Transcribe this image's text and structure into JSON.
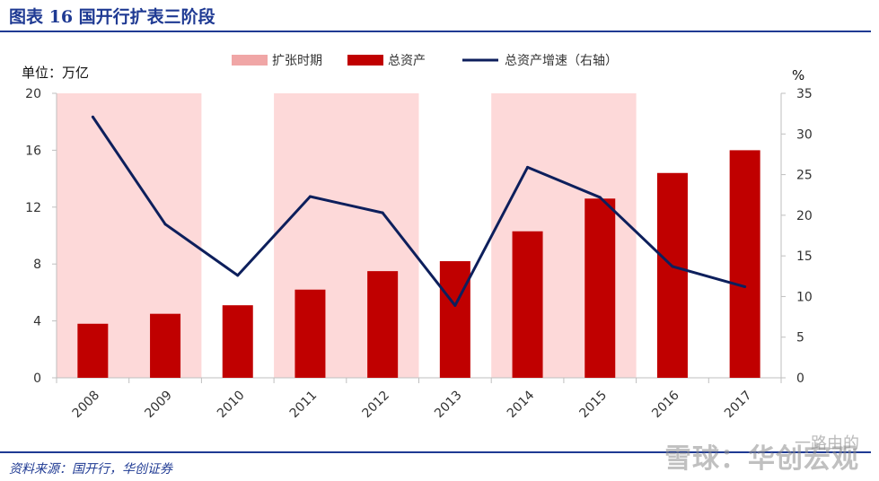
{
  "header": {
    "title": "图表 16  国开行扩表三阶段"
  },
  "footer": {
    "source": "资料来源：国开行，华创证券",
    "watermark": "雪球：华创宏观",
    "watermark_small": "一路由的"
  },
  "colors": {
    "shade": "#fdd9d9",
    "legend_shade": "#f0a6a6",
    "bar": "#c00000",
    "line": "#0d1f5c",
    "axis": "#bfbfbf"
  },
  "chart_data": {
    "type": "bar+line",
    "legend": [
      "扩张时期",
      "总资产",
      "总资产增速（右轴）"
    ],
    "left_unit": "单位：万亿",
    "right_unit": "%",
    "categories": [
      "2008",
      "2009",
      "2010",
      "2011",
      "2012",
      "2013",
      "2014",
      "2015",
      "2016",
      "2017"
    ],
    "expansion_periods": [
      [
        "2008",
        "2009"
      ],
      [
        "2011",
        "2012"
      ],
      [
        "2014",
        "2015"
      ]
    ],
    "series": [
      {
        "name": "总资产",
        "kind": "bar",
        "axis": "left",
        "values": [
          3.8,
          4.5,
          5.1,
          6.2,
          7.5,
          8.2,
          10.3,
          12.6,
          14.4,
          16.0
        ]
      },
      {
        "name": "总资产增速（右轴）",
        "kind": "line",
        "axis": "right",
        "values": [
          32.1,
          18.9,
          12.6,
          22.3,
          20.3,
          8.9,
          25.9,
          22.2,
          13.7,
          11.2
        ]
      }
    ],
    "left_axis": {
      "min": 0,
      "max": 20,
      "ticks": [
        "0",
        "4",
        "8",
        "12",
        "16",
        "20"
      ]
    },
    "right_axis": {
      "min": 0,
      "max": 35,
      "ticks": [
        "0",
        "5",
        "10",
        "15",
        "20",
        "25",
        "30",
        "35"
      ]
    },
    "legend_position": "top-center",
    "grid": false
  }
}
